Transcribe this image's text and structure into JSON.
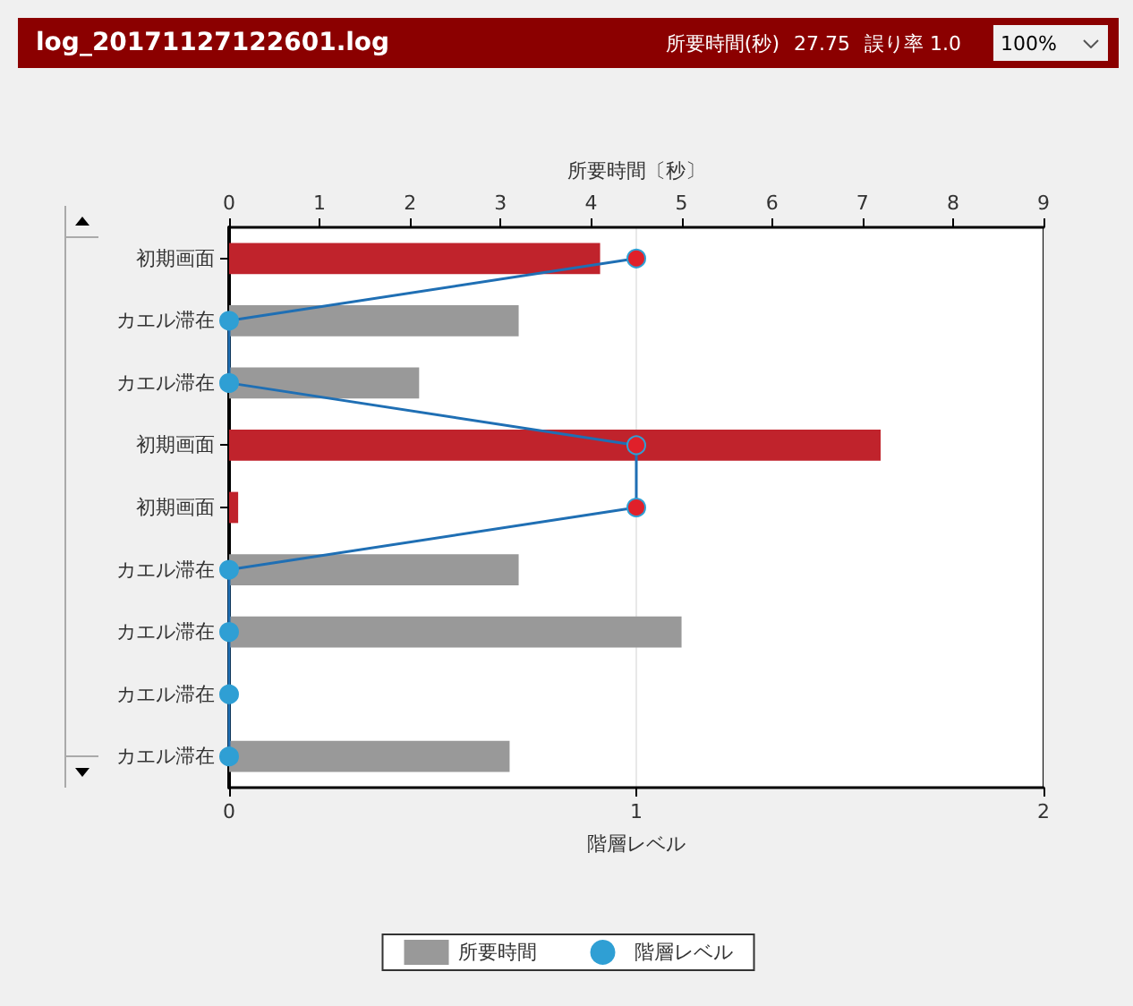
{
  "chart_data": {
    "type": "bar",
    "orientation": "horizontal",
    "title": "log_20171127122601.log",
    "annotations": [
      "所要時間(秒)",
      "27.75",
      "誤り率 1.0",
      "100%"
    ],
    "categories": [
      "初期画面",
      "カエル滞在",
      "カエル滞在",
      "初期画面",
      "初期画面",
      "カエル滞在",
      "カエル滞在",
      "カエル滞在",
      "カエル滞在"
    ],
    "series": [
      {
        "name": "所要時間",
        "axis": "x2",
        "color": "#999999",
        "colors": [
          "#c0232c",
          "#999999",
          "#999999",
          "#c0232c",
          "#c0232c",
          "#999999",
          "#999999",
          "#999999",
          "#999999"
        ],
        "values": [
          4.1,
          3.2,
          2.1,
          7.2,
          0.1,
          3.2,
          5.0,
          0,
          3.1
        ]
      },
      {
        "name": "階層レベル",
        "type": "line",
        "color": "#2f9fd4",
        "colors": [
          "#e0202a",
          "#2f9fd4",
          "#2f9fd4",
          "#e0202a",
          "#e0202a",
          "#2f9fd4",
          "#2f9fd4",
          "#2f9fd4",
          "#2f9fd4"
        ],
        "values": [
          1,
          0,
          0,
          1,
          1,
          0,
          0,
          0,
          0
        ]
      }
    ],
    "xlabel": "階層レベル",
    "xlim": [
      0,
      2
    ],
    "xticks": [
      0,
      1,
      2
    ],
    "x2label": "所要時間〔秒〕",
    "x2lim": [
      0,
      9
    ],
    "x2ticks": [
      0,
      1,
      2,
      3,
      4,
      5,
      6,
      7,
      8,
      9
    ],
    "grid": "x",
    "legend": "bottom",
    "marker": "circle"
  }
}
